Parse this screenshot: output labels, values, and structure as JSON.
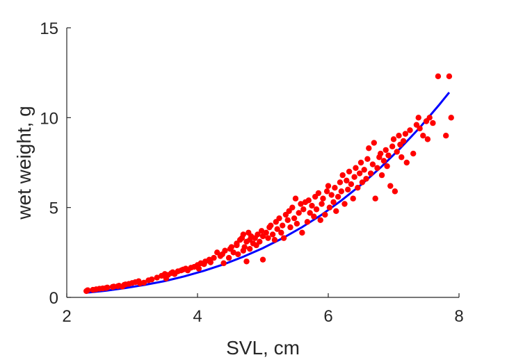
{
  "chart_data": {
    "type": "scatter",
    "xlabel": "SVL, cm",
    "ylabel": "wet weight, g",
    "xlim": [
      2,
      8
    ],
    "ylim": [
      0,
      15
    ],
    "xticks": [
      2,
      4,
      6,
      8
    ],
    "yticks": [
      0,
      5,
      10,
      15
    ],
    "xtick_labels": [
      "2",
      "4",
      "6",
      "8"
    ],
    "ytick_labels": [
      "0",
      "5",
      "10",
      "15"
    ],
    "grid": false,
    "box": "left-bottom",
    "colors": {
      "points": "#ff0000",
      "fit": "#0000ff",
      "axis": "#262626"
    },
    "series": [
      {
        "kind": "points",
        "x": [
          2.3,
          2.32,
          2.4,
          2.45,
          2.5,
          2.55,
          2.6,
          2.62,
          2.7,
          2.72,
          2.78,
          2.8,
          2.85,
          2.88,
          2.9,
          2.95,
          3.0,
          3.05,
          3.1,
          3.12,
          3.18,
          3.25,
          3.3,
          3.38,
          3.45,
          3.5,
          3.52,
          3.55,
          3.6,
          3.62,
          3.65,
          3.7,
          3.75,
          3.78,
          3.82,
          3.85,
          3.9,
          3.95,
          4.0,
          4.02,
          4.05,
          4.1,
          4.12,
          4.18,
          4.2,
          4.25,
          4.3,
          4.35,
          4.38,
          4.4,
          4.42,
          4.48,
          4.5,
          4.52,
          4.55,
          4.6,
          4.6,
          4.62,
          4.65,
          4.68,
          4.7,
          4.7,
          4.72,
          4.75,
          4.75,
          4.78,
          4.8,
          4.8,
          4.82,
          4.85,
          4.88,
          4.9,
          4.92,
          4.95,
          4.98,
          5.0,
          5.0,
          5.05,
          5.08,
          5.1,
          5.12,
          5.15,
          5.18,
          5.2,
          5.22,
          5.25,
          5.28,
          5.3,
          5.32,
          5.35,
          5.38,
          5.4,
          5.42,
          5.45,
          5.48,
          5.5,
          5.52,
          5.55,
          5.58,
          5.6,
          5.62,
          5.65,
          5.68,
          5.7,
          5.72,
          5.75,
          5.78,
          5.8,
          5.82,
          5.85,
          5.88,
          5.9,
          5.92,
          5.95,
          5.98,
          6.0,
          6.02,
          6.05,
          6.08,
          6.1,
          6.12,
          6.15,
          6.18,
          6.2,
          6.22,
          6.25,
          6.28,
          6.3,
          6.32,
          6.35,
          6.38,
          6.4,
          6.42,
          6.45,
          6.48,
          6.5,
          6.52,
          6.55,
          6.58,
          6.6,
          6.62,
          6.65,
          6.68,
          6.7,
          6.72,
          6.75,
          6.78,
          6.8,
          6.82,
          6.85,
          6.88,
          6.9,
          6.92,
          6.95,
          6.98,
          7.0,
          7.02,
          7.05,
          7.08,
          7.1,
          7.12,
          7.15,
          7.18,
          7.2,
          7.25,
          7.3,
          7.35,
          7.38,
          7.4,
          7.45,
          7.5,
          7.52,
          7.55,
          7.6,
          7.68,
          7.8,
          7.85,
          7.88
        ],
        "y": [
          0.35,
          0.4,
          0.42,
          0.45,
          0.48,
          0.5,
          0.52,
          0.55,
          0.58,
          0.6,
          0.62,
          0.65,
          0.6,
          0.7,
          0.72,
          0.75,
          0.8,
          0.85,
          0.9,
          0.78,
          0.82,
          0.95,
          1.0,
          1.1,
          1.2,
          1.3,
          1.05,
          1.25,
          1.35,
          1.4,
          1.3,
          1.45,
          1.5,
          1.55,
          1.6,
          1.5,
          1.65,
          1.7,
          1.8,
          1.6,
          1.9,
          1.85,
          2.0,
          2.1,
          1.95,
          2.2,
          2.5,
          2.3,
          2.4,
          1.9,
          2.6,
          2.2,
          2.7,
          2.8,
          2.5,
          2.9,
          3.0,
          2.4,
          3.2,
          3.3,
          2.6,
          3.5,
          2.8,
          3.1,
          2.0,
          3.6,
          3.2,
          2.7,
          3.4,
          3.0,
          3.3,
          2.9,
          3.5,
          3.1,
          3.7,
          3.4,
          2.1,
          3.6,
          3.3,
          3.9,
          4.0,
          3.5,
          3.2,
          4.2,
          3.8,
          4.4,
          3.6,
          4.0,
          3.3,
          4.6,
          4.3,
          4.8,
          3.9,
          5.0,
          4.4,
          5.5,
          4.1,
          4.7,
          5.2,
          3.6,
          4.9,
          5.3,
          4.2,
          5.4,
          4.7,
          5.1,
          4.5,
          5.6,
          4.9,
          5.8,
          4.3,
          5.2,
          5.5,
          4.6,
          5.9,
          6.2,
          5.0,
          5.7,
          5.3,
          6.1,
          4.8,
          5.6,
          6.4,
          5.9,
          6.8,
          5.2,
          6.5,
          6.0,
          7.0,
          6.3,
          5.5,
          6.7,
          7.2,
          6.1,
          6.9,
          7.5,
          6.4,
          7.1,
          6.6,
          7.7,
          8.3,
          6.9,
          7.4,
          8.6,
          5.5,
          7.2,
          7.8,
          8.0,
          6.8,
          7.6,
          8.2,
          7.3,
          7.9,
          6.2,
          8.4,
          8.8,
          5.9,
          8.1,
          9.0,
          8.5,
          7.8,
          8.7,
          9.1,
          7.5,
          9.3,
          8.0,
          9.6,
          10.0,
          9.4,
          9.0,
          9.8,
          8.8,
          10.0,
          9.7,
          12.3,
          9.0,
          12.3,
          10.0
        ]
      },
      {
        "kind": "fit",
        "x": [
          2.3,
          2.6,
          2.9,
          3.2,
          3.5,
          3.8,
          4.1,
          4.4,
          4.7,
          5.0,
          5.3,
          5.6,
          5.9,
          6.2,
          6.5,
          6.8,
          7.1,
          7.4,
          7.7,
          7.85
        ],
        "y": [
          0.26,
          0.37,
          0.52,
          0.7,
          0.91,
          1.17,
          1.48,
          1.84,
          2.26,
          2.74,
          3.29,
          3.91,
          4.6,
          5.39,
          6.26,
          7.22,
          8.29,
          9.45,
          10.73,
          11.4
        ]
      }
    ]
  }
}
